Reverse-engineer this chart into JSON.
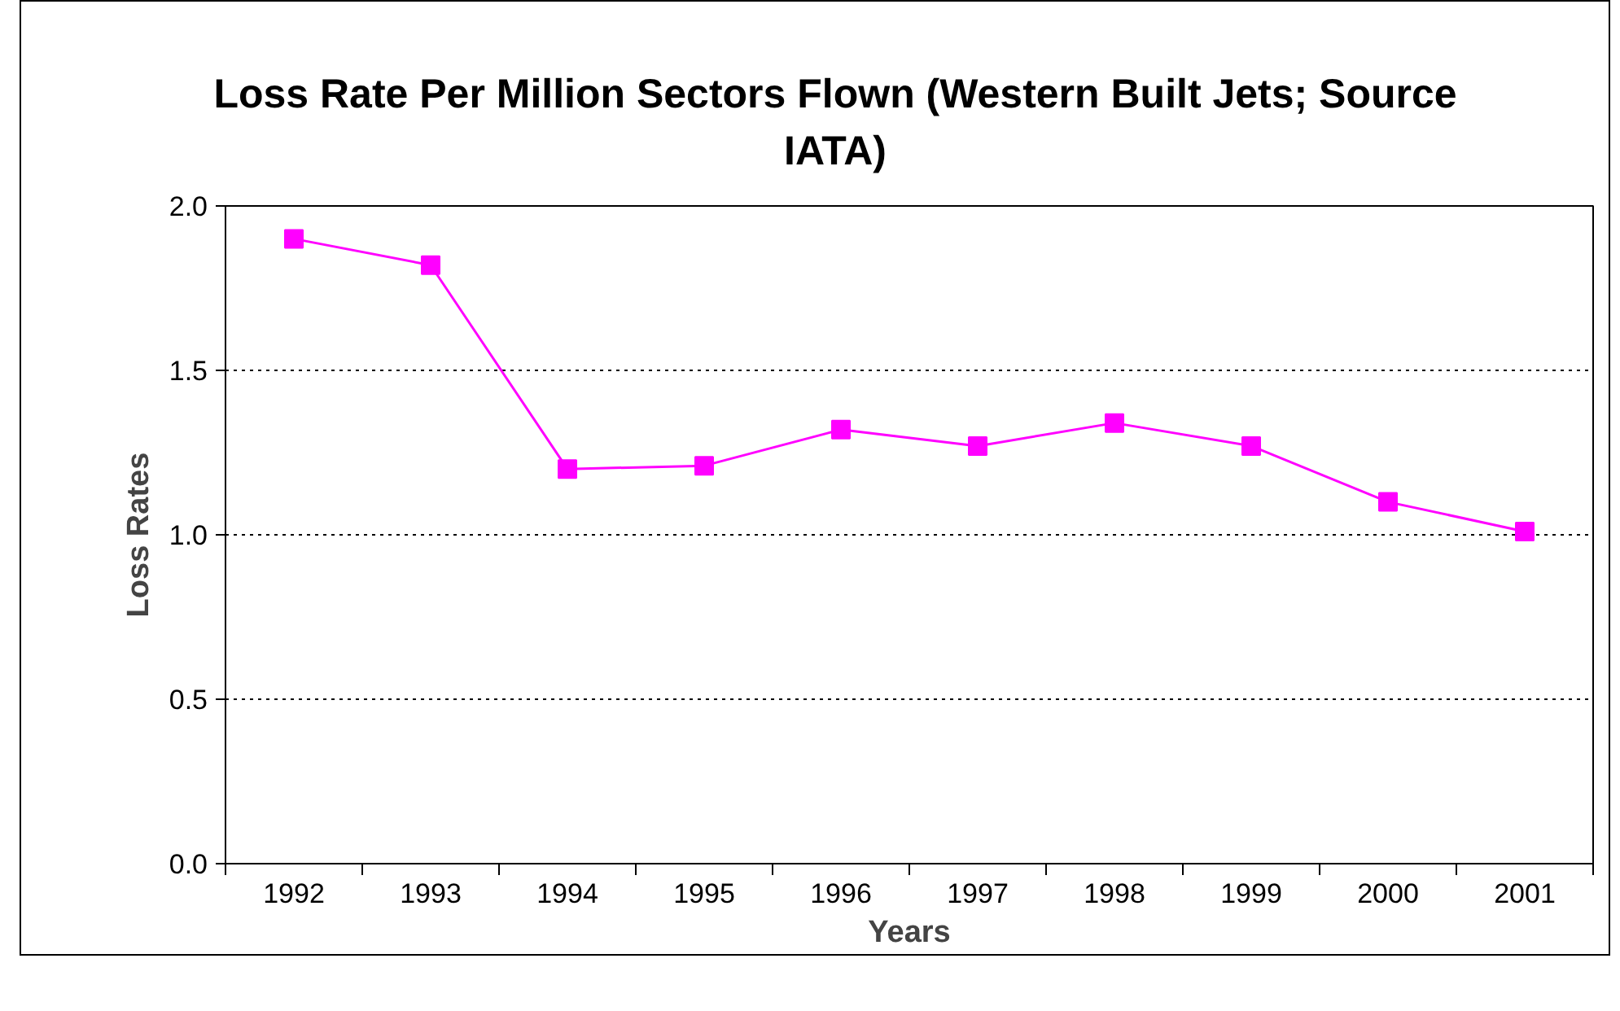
{
  "chart_data": {
    "type": "line",
    "title": "Loss Rate Per Million Sectors Flown (Western Built Jets; Source IATA)",
    "xlabel": "Years",
    "ylabel": "Loss Rates",
    "categories": [
      "1992",
      "1993",
      "1994",
      "1995",
      "1996",
      "1997",
      "1998",
      "1999",
      "2000",
      "2001"
    ],
    "series": [
      {
        "color": "#ff00ff",
        "values": [
          1.9,
          1.82,
          1.2,
          1.21,
          1.32,
          1.27,
          1.34,
          1.27,
          1.1,
          1.01
        ]
      }
    ],
    "ylim": [
      0,
      2
    ],
    "yticks": [
      {
        "value": 0,
        "label": "0.0"
      },
      {
        "value": 0.5,
        "label": "0.5"
      },
      {
        "value": 1,
        "label": "1.0"
      },
      {
        "value": 1.5,
        "label": "1.5"
      },
      {
        "value": 2,
        "label": "2.0"
      }
    ],
    "grid": "y",
    "marker": "square",
    "line_style": "solid"
  }
}
